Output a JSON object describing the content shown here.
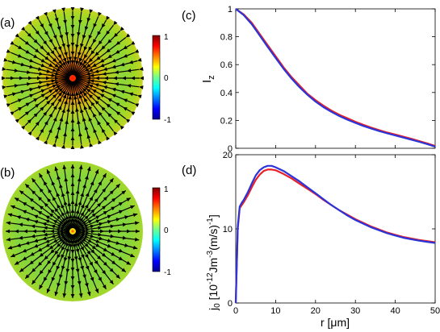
{
  "panels": {
    "a": "(a)",
    "b": "(b)",
    "c": "(c)",
    "d": "(d)"
  },
  "colors": {
    "red_series": "#e8202a",
    "blue_series": "#2a34d8",
    "arrow": "#000000"
  },
  "colorbar_a": {
    "ticks": [
      "1",
      "0",
      "-1"
    ]
  },
  "colorbar_b": {
    "ticks": [
      "1",
      "0",
      "-1"
    ]
  },
  "chart_data": [
    {
      "type": "line",
      "panel": "(c)",
      "xlabel": "",
      "ylabel": "I",
      "ylabel_sub": "z",
      "xlim": [
        0,
        50
      ],
      "ylim": [
        0,
        1
      ],
      "x_ticks": [
        "0",
        "10",
        "20",
        "30",
        "40",
        "50"
      ],
      "y_ticks": [
        "0",
        "0.2",
        "0.4",
        "0.6",
        "0.8",
        "1"
      ],
      "x": [
        0,
        2,
        4,
        6,
        8,
        10,
        12,
        14,
        16,
        18,
        20,
        22,
        24,
        26,
        28,
        30,
        32,
        34,
        36,
        38,
        40,
        42,
        44,
        46,
        48,
        50
      ],
      "series": [
        {
          "color": "red",
          "values": [
            1.0,
            0.96,
            0.9,
            0.82,
            0.74,
            0.66,
            0.58,
            0.51,
            0.45,
            0.39,
            0.345,
            0.305,
            0.27,
            0.24,
            0.215,
            0.19,
            0.168,
            0.148,
            0.13,
            0.113,
            0.098,
            0.083,
            0.068,
            0.052,
            0.035,
            0.016
          ]
        },
        {
          "color": "blue",
          "values": [
            1.0,
            0.955,
            0.89,
            0.81,
            0.728,
            0.648,
            0.57,
            0.5,
            0.438,
            0.383,
            0.335,
            0.295,
            0.261,
            0.231,
            0.205,
            0.182,
            0.16,
            0.141,
            0.123,
            0.107,
            0.092,
            0.077,
            0.062,
            0.046,
            0.03,
            0.012
          ]
        }
      ]
    },
    {
      "type": "line",
      "panel": "(d)",
      "xlabel": "r [μm]",
      "ylabel": "j0 [10^-12 Jm^-3 (m/s)^-1]",
      "xlim": [
        0,
        50
      ],
      "ylim": [
        0,
        20
      ],
      "x_ticks": [
        "0",
        "10",
        "20",
        "30",
        "40",
        "50"
      ],
      "y_ticks": [
        "0",
        "10",
        "20"
      ],
      "x": [
        0,
        0.5,
        1,
        1.5,
        2,
        3,
        4,
        5,
        6,
        7,
        8,
        9,
        10,
        12,
        14,
        16,
        18,
        20,
        22,
        24,
        26,
        28,
        30,
        32,
        34,
        36,
        38,
        40,
        42,
        44,
        46,
        48,
        50
      ],
      "series": [
        {
          "color": "red",
          "values": [
            0,
            10.0,
            12.8,
            13.2,
            13.6,
            14.5,
            15.6,
            16.6,
            17.3,
            17.8,
            18.0,
            18.0,
            17.9,
            17.4,
            16.8,
            16.1,
            15.4,
            14.7,
            13.9,
            13.2,
            12.5,
            11.9,
            11.3,
            10.8,
            10.3,
            9.9,
            9.5,
            9.2,
            8.9,
            8.7,
            8.5,
            8.35,
            8.2
          ]
        },
        {
          "color": "blue",
          "values": [
            0,
            10.3,
            13.0,
            13.5,
            13.9,
            14.9,
            16.1,
            17.2,
            17.9,
            18.3,
            18.5,
            18.5,
            18.3,
            17.8,
            17.1,
            16.4,
            15.6,
            14.8,
            14.0,
            13.2,
            12.5,
            11.8,
            11.2,
            10.7,
            10.2,
            9.8,
            9.4,
            9.1,
            8.8,
            8.6,
            8.4,
            8.25,
            8.1
          ]
        }
      ]
    }
  ]
}
